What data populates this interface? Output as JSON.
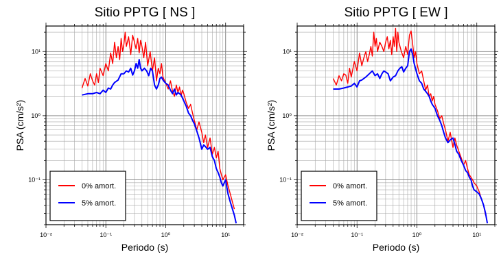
{
  "chart_data": [
    {
      "type": "line",
      "title": "Sitio PPTG [ NS ]",
      "xlabel": "Periodo (s)",
      "ylabel": "PSA (cm/s²)",
      "x_scale": "log",
      "y_scale": "log",
      "xlim": [
        0.01,
        20
      ],
      "ylim": [
        0.02,
        25
      ],
      "grid": true,
      "legend_position": "bottom-left",
      "x_tick_labels": [
        "10⁻²",
        "10⁻¹",
        "10⁰",
        "10¹"
      ],
      "y_tick_labels": [
        "10⁻¹",
        "10⁰",
        "10¹"
      ],
      "series": [
        {
          "name": "0% amort.",
          "color": "#ff0000",
          "x": [
            0.04,
            0.045,
            0.05,
            0.055,
            0.06,
            0.065,
            0.07,
            0.075,
            0.08,
            0.09,
            0.1,
            0.11,
            0.12,
            0.13,
            0.14,
            0.15,
            0.16,
            0.17,
            0.18,
            0.19,
            0.2,
            0.21,
            0.22,
            0.24,
            0.26,
            0.28,
            0.3,
            0.32,
            0.34,
            0.36,
            0.38,
            0.4,
            0.43,
            0.46,
            0.5,
            0.55,
            0.6,
            0.65,
            0.7,
            0.75,
            0.8,
            0.85,
            0.9,
            1.0,
            1.1,
            1.2,
            1.3,
            1.4,
            1.5,
            1.6,
            1.7,
            1.8,
            1.9,
            2.0,
            2.2,
            2.4,
            2.6,
            2.8,
            3.0,
            3.3,
            3.6,
            4.0,
            4.3,
            4.6,
            5.0,
            5.5,
            6.0,
            6.5,
            7.0,
            7.5,
            8.0,
            8.5,
            9.0,
            10.0,
            11.0,
            12.0,
            13.0,
            14.0
          ],
          "y": [
            2.7,
            3.8,
            2.9,
            4.5,
            3.5,
            3.0,
            4.5,
            3.3,
            5.5,
            4.2,
            6.5,
            5.0,
            9.5,
            6.5,
            14.0,
            8.0,
            12.0,
            7.5,
            16.0,
            10.0,
            13.0,
            20.0,
            12.0,
            17.0,
            9.0,
            18.0,
            14.0,
            11.0,
            16.0,
            9.5,
            15.0,
            12.0,
            8.0,
            14.0,
            6.0,
            10.0,
            5.0,
            8.0,
            3.5,
            5.5,
            4.5,
            6.5,
            4.0,
            3.2,
            2.6,
            3.5,
            2.4,
            2.0,
            3.0,
            2.3,
            2.8,
            2.0,
            2.5,
            2.2,
            1.6,
            1.3,
            1.5,
            1.1,
            0.85,
            0.6,
            0.8,
            0.55,
            0.38,
            0.5,
            0.32,
            0.45,
            0.25,
            0.32,
            0.22,
            0.28,
            0.15,
            0.12,
            0.1,
            0.12,
            0.08,
            0.06,
            0.045,
            0.035
          ]
        },
        {
          "name": "5% amort.",
          "color": "#0000ff",
          "x": [
            0.04,
            0.05,
            0.06,
            0.07,
            0.08,
            0.09,
            0.1,
            0.11,
            0.12,
            0.13,
            0.14,
            0.16,
            0.18,
            0.2,
            0.22,
            0.24,
            0.26,
            0.28,
            0.3,
            0.32,
            0.34,
            0.36,
            0.38,
            0.4,
            0.44,
            0.48,
            0.52,
            0.56,
            0.6,
            0.65,
            0.7,
            0.75,
            0.8,
            0.85,
            0.9,
            1.0,
            1.1,
            1.2,
            1.3,
            1.4,
            1.5,
            1.6,
            1.7,
            1.8,
            1.9,
            2.0,
            2.2,
            2.4,
            2.6,
            2.8,
            3.0,
            3.3,
            3.6,
            4.0,
            4.3,
            4.6,
            5.0,
            5.5,
            6.0,
            6.5,
            7.0,
            7.5,
            8.0,
            8.5,
            9.0,
            10.0,
            11.0,
            12.0,
            13.0,
            14.0,
            15.0
          ],
          "y": [
            2.1,
            2.2,
            2.2,
            2.3,
            2.2,
            2.5,
            2.3,
            2.7,
            2.6,
            3.0,
            3.3,
            3.6,
            4.5,
            4.5,
            5.0,
            4.8,
            5.5,
            4.3,
            5.0,
            6.5,
            5.5,
            7.5,
            5.5,
            5.0,
            5.5,
            5.0,
            4.2,
            5.5,
            5.0,
            3.0,
            2.6,
            3.0,
            3.8,
            4.0,
            3.6,
            3.2,
            3.0,
            2.5,
            2.2,
            2.6,
            2.1,
            2.3,
            2.2,
            2.1,
            1.9,
            1.7,
            1.4,
            1.1,
            1.0,
            0.85,
            0.75,
            0.58,
            0.45,
            0.3,
            0.35,
            0.33,
            0.3,
            0.32,
            0.23,
            0.2,
            0.15,
            0.13,
            0.11,
            0.09,
            0.08,
            0.1,
            0.06,
            0.045,
            0.035,
            0.028,
            0.021
          ]
        }
      ]
    },
    {
      "type": "line",
      "title": "Sitio PPTG [ EW ]",
      "xlabel": "Periodo (s)",
      "ylabel": "PSA (cm/s²)",
      "x_scale": "log",
      "y_scale": "log",
      "xlim": [
        0.01,
        20
      ],
      "ylim": [
        0.02,
        25
      ],
      "grid": true,
      "legend_position": "bottom-left",
      "x_tick_labels": [
        "10⁻²",
        "10⁻¹",
        "10⁰",
        "10¹"
      ],
      "y_tick_labels": [
        "10⁻¹",
        "10⁰",
        "10¹"
      ],
      "series": [
        {
          "name": "0% amort.",
          "color": "#ff0000",
          "x": [
            0.04,
            0.045,
            0.05,
            0.055,
            0.06,
            0.065,
            0.07,
            0.075,
            0.08,
            0.09,
            0.1,
            0.11,
            0.12,
            0.13,
            0.14,
            0.15,
            0.16,
            0.17,
            0.18,
            0.19,
            0.2,
            0.21,
            0.22,
            0.24,
            0.26,
            0.28,
            0.3,
            0.32,
            0.34,
            0.36,
            0.38,
            0.4,
            0.42,
            0.44,
            0.46,
            0.48,
            0.5,
            0.55,
            0.6,
            0.65,
            0.7,
            0.75,
            0.8,
            0.85,
            0.9,
            0.95,
            1.0,
            1.1,
            1.2,
            1.3,
            1.4,
            1.5,
            1.6,
            1.7,
            1.8,
            1.9,
            2.0,
            2.2,
            2.4,
            2.6,
            2.8,
            3.0,
            3.3,
            3.6,
            4.0,
            4.3,
            4.6,
            5.0,
            5.5,
            6.0,
            6.5,
            7.0,
            7.5,
            8.0,
            8.5,
            9.0,
            10.0,
            11.0,
            12.0,
            13.0,
            14.0
          ],
          "y": [
            3.8,
            3.0,
            4.2,
            3.5,
            4.5,
            4.3,
            3.2,
            5.5,
            4.0,
            7.0,
            5.0,
            9.5,
            6.0,
            8.0,
            10.0,
            7.0,
            9.0,
            12.0,
            8.5,
            20.0,
            12.0,
            16.0,
            10.0,
            14.0,
            12.0,
            10.0,
            14.0,
            17.0,
            11.0,
            15.0,
            9.0,
            17.0,
            12.0,
            23.0,
            10.0,
            20.0,
            14.0,
            10.0,
            8.0,
            12.0,
            9.0,
            18.0,
            21.0,
            13.0,
            8.0,
            10.0,
            6.5,
            4.5,
            5.0,
            3.5,
            2.5,
            3.0,
            2.0,
            2.2,
            1.7,
            2.0,
            1.5,
            1.2,
            0.9,
            1.0,
            0.75,
            0.6,
            0.4,
            0.55,
            0.32,
            0.45,
            0.35,
            0.28,
            0.22,
            0.17,
            0.2,
            0.15,
            0.12,
            0.11,
            0.1,
            0.09,
            0.08,
            0.065,
            0.05,
            0.04,
            0.028
          ]
        },
        {
          "name": "5% amort.",
          "color": "#0000ff",
          "x": [
            0.04,
            0.05,
            0.06,
            0.07,
            0.08,
            0.09,
            0.1,
            0.11,
            0.12,
            0.13,
            0.14,
            0.16,
            0.18,
            0.2,
            0.22,
            0.24,
            0.26,
            0.28,
            0.3,
            0.33,
            0.36,
            0.4,
            0.44,
            0.48,
            0.52,
            0.56,
            0.6,
            0.65,
            0.7,
            0.75,
            0.8,
            0.85,
            0.9,
            1.0,
            1.1,
            1.2,
            1.3,
            1.4,
            1.5,
            1.6,
            1.7,
            1.8,
            1.9,
            2.0,
            2.2,
            2.4,
            2.6,
            2.8,
            3.0,
            3.3,
            3.6,
            4.0,
            4.3,
            4.6,
            5.0,
            5.5,
            6.0,
            6.5,
            7.0,
            7.5,
            8.0,
            8.5,
            9.0,
            10.0,
            11.0,
            12.0,
            13.0,
            14.0,
            15.0
          ],
          "y": [
            2.6,
            2.6,
            2.7,
            2.8,
            2.9,
            3.2,
            2.8,
            3.5,
            3.6,
            3.8,
            4.0,
            4.5,
            5.0,
            4.2,
            4.5,
            3.8,
            4.5,
            5.0,
            4.8,
            4.5,
            3.5,
            4.0,
            4.2,
            5.0,
            5.5,
            5.8,
            4.8,
            5.5,
            6.0,
            10.0,
            11.0,
            9.0,
            6.5,
            4.5,
            3.5,
            3.2,
            2.6,
            2.4,
            2.2,
            2.0,
            1.7,
            1.5,
            1.4,
            1.3,
            1.0,
            0.85,
            0.7,
            0.55,
            0.45,
            0.38,
            0.42,
            0.45,
            0.36,
            0.28,
            0.25,
            0.2,
            0.17,
            0.14,
            0.13,
            0.11,
            0.1,
            0.08,
            0.07,
            0.065,
            0.06,
            0.05,
            0.04,
            0.03,
            0.021
          ]
        }
      ]
    }
  ]
}
